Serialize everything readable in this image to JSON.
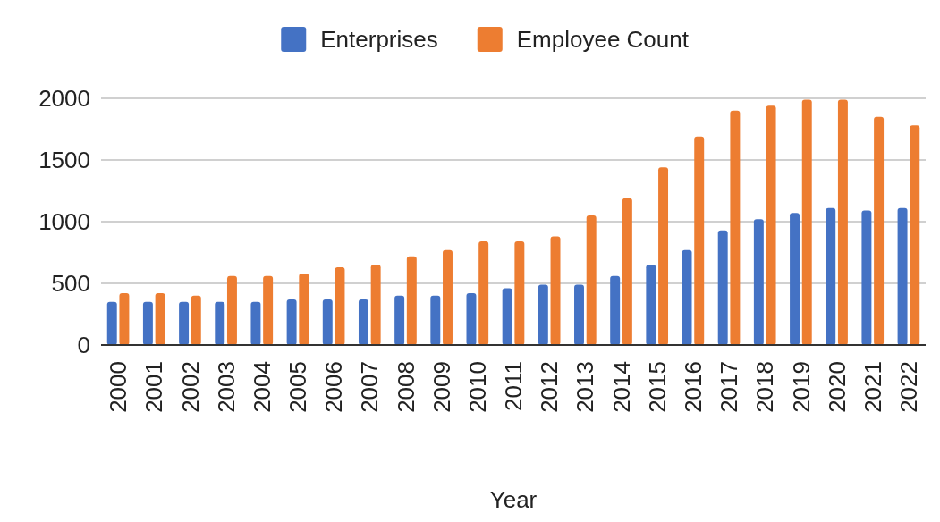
{
  "chart_data": {
    "type": "bar",
    "xlabel": "Year",
    "categories": [
      "2000",
      "2001",
      "2002",
      "2003",
      "2004",
      "2005",
      "2006",
      "2007",
      "2008",
      "2009",
      "2010",
      "2011",
      "2012",
      "2013",
      "2014",
      "2015",
      "2016",
      "2017",
      "2018",
      "2019",
      "2020",
      "2021",
      "2022"
    ],
    "series": [
      {
        "name": "Enterprises",
        "color": "#4472c4",
        "values": [
          350,
          350,
          350,
          350,
          350,
          370,
          370,
          370,
          400,
          400,
          420,
          460,
          490,
          490,
          560,
          650,
          770,
          930,
          1020,
          1070,
          1110,
          1090,
          1110
        ]
      },
      {
        "name": "Employee Count",
        "color": "#ed7d31",
        "values": [
          420,
          420,
          400,
          560,
          560,
          580,
          630,
          650,
          720,
          770,
          840,
          840,
          880,
          1050,
          1190,
          1440,
          1690,
          1900,
          1940,
          1990,
          1990,
          1850,
          1780
        ]
      }
    ],
    "ylim": [
      0,
      2000
    ],
    "yticks": [
      0,
      500,
      1000,
      1500,
      2000
    ],
    "grid": "y",
    "legend": "top"
  }
}
